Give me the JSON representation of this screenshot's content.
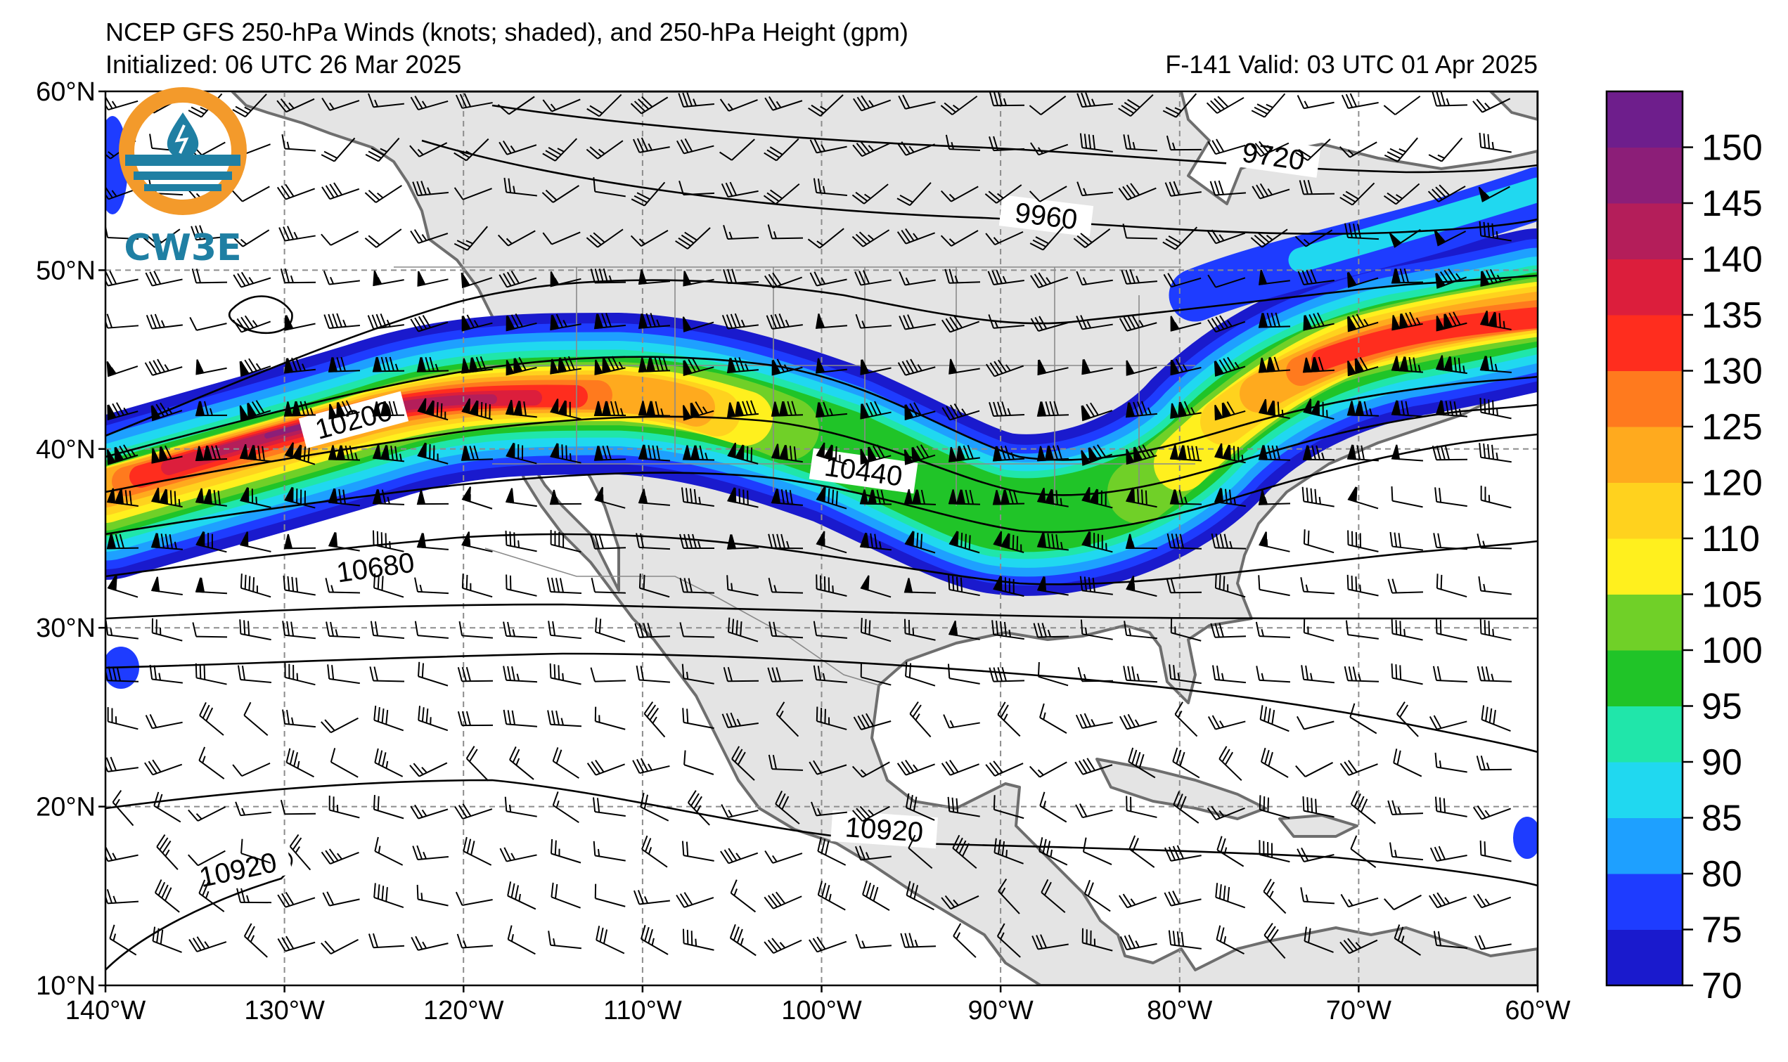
{
  "header": {
    "title": "NCEP GFS 250-hPa Winds (knots; shaded), and 250-hPa Height (gpm)",
    "init": "Initialized: 06 UTC 26 Mar 2025",
    "valid": "F-141  Valid: 03 UTC 01 Apr 2025"
  },
  "logo": {
    "text": "CW3E"
  },
  "map": {
    "lon_range": [
      -140,
      -60
    ],
    "lat_range": [
      10,
      60
    ],
    "lon_ticks": [
      {
        "lon": -140,
        "label": "140°W"
      },
      {
        "lon": -130,
        "label": "130°W"
      },
      {
        "lon": -120,
        "label": "120°W"
      },
      {
        "lon": -110,
        "label": "110°W"
      },
      {
        "lon": -100,
        "label": "100°W"
      },
      {
        "lon": -90,
        "label": "90°W"
      },
      {
        "lon": -80,
        "label": "80°W"
      },
      {
        "lon": -70,
        "label": "70°W"
      },
      {
        "lon": -60,
        "label": "60°W"
      }
    ],
    "lat_ticks": [
      {
        "lat": 60,
        "label": "60°N"
      },
      {
        "lat": 50,
        "label": "50°N"
      },
      {
        "lat": 40,
        "label": "40°N"
      },
      {
        "lat": 30,
        "label": "30°N"
      },
      {
        "lat": 20,
        "label": "20°N"
      },
      {
        "lat": 10,
        "label": "10°N"
      }
    ],
    "gridlines": true,
    "height_contour_labels": [
      {
        "text": "9720",
        "lon": -75,
        "lat": 55.4
      },
      {
        "text": "9960",
        "lon": -87.5,
        "lat": 52.5
      },
      {
        "text": "10200",
        "lon": -126,
        "lat": 41.5
      },
      {
        "text": "10440",
        "lon": -98,
        "lat": 38.1
      },
      {
        "text": "10680",
        "lon": -126,
        "lat": 33.1
      },
      {
        "text": "10920",
        "lon": -96.5,
        "lat": 17.3
      },
      {
        "text": "10920",
        "lon": -132.5,
        "lat": 15.5
      }
    ]
  },
  "colorbar": {
    "levels": [
      70,
      75,
      80,
      85,
      90,
      95,
      100,
      105,
      110,
      120,
      125,
      130,
      135,
      140,
      145,
      150
    ],
    "tick_labels": [
      "70",
      "75",
      "80",
      "85",
      "90",
      "95",
      "100",
      "105",
      "110",
      "120",
      "125",
      "130",
      "135",
      "140",
      "145",
      "150"
    ],
    "colors": [
      "#1a1acd",
      "#1e3cff",
      "#1ea0ff",
      "#20d8f0",
      "#20e6aa",
      "#20c428",
      "#70d028",
      "#fff01e",
      "#ffd21e",
      "#ffaa1e",
      "#ff7a1e",
      "#ff2d1e",
      "#dc1e3c",
      "#b41e5a",
      "#8c1e78",
      "#6e1e8c"
    ]
  },
  "colors": {
    "land": "#e4e4e4",
    "ocean": "#ffffff",
    "coast": "#6e6e6e",
    "contour": "#000000",
    "grid": "#8c8c8c",
    "logo_orange": "#f39a2b",
    "logo_blue": "#1f7fa3"
  }
}
